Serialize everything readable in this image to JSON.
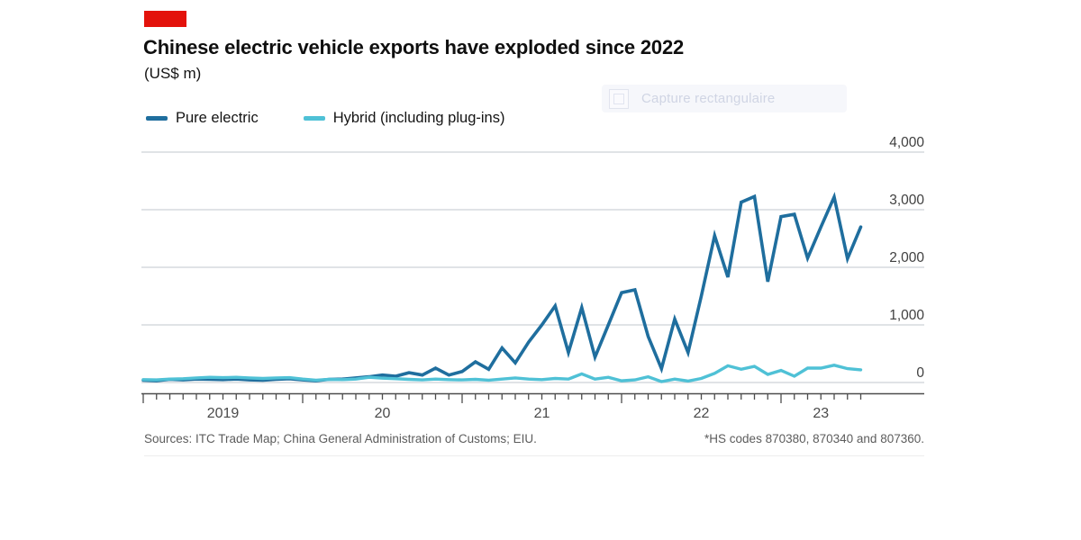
{
  "header": {
    "tag_color": "#e3120b",
    "title": "Chinese electric vehicle exports have exploded since 2022",
    "subtitle": "(US$ m)"
  },
  "screenshot_overlay": {
    "label": "Capture rectangulaire",
    "icon": "region-capture-icon"
  },
  "legend": [
    {
      "label": "Pure electric",
      "color": "#1f6e9e"
    },
    {
      "label": "Hybrid (including plug-ins)",
      "color": "#4fc1d6"
    }
  ],
  "chart_data": {
    "type": "line",
    "title": "Chinese electric vehicle exports have exploded since 2022",
    "subtitle": "(US$ m)",
    "x_unit": "month",
    "x_start": "2019-01",
    "x_end": "2023-07",
    "x_tick_labels": [
      "2019",
      "20",
      "21",
      "22",
      "23"
    ],
    "ylim": [
      0,
      4000
    ],
    "y_ticks": [
      0,
      1000,
      2000,
      3000,
      4000
    ],
    "y_tick_labels": [
      "0",
      "1,000",
      "2,000",
      "3,000",
      "4,000"
    ],
    "grid": "horizontal-right-labels",
    "legend_position": "top-left",
    "colors": {
      "grid": "#cdd2d6",
      "axis": "#4d4d4d",
      "tick_label": "#4a4a4a"
    },
    "series": [
      {
        "name": "Pure electric",
        "color": "#1f6e9e",
        "values": [
          40,
          30,
          55,
          45,
          60,
          55,
          50,
          60,
          45,
          40,
          55,
          65,
          45,
          30,
          55,
          60,
          80,
          100,
          130,
          110,
          170,
          130,
          250,
          130,
          190,
          360,
          230,
          600,
          340,
          700,
          1000,
          1330,
          520,
          1300,
          440,
          1000,
          1560,
          1610,
          800,
          240,
          1100,
          520,
          1500,
          2550,
          1830,
          3130,
          3230,
          1750,
          2880,
          2920,
          2160,
          2700,
          3220,
          2150,
          2700
        ]
      },
      {
        "name": "Hybrid (including plug-ins)",
        "color": "#4fc1d6",
        "values": [
          50,
          45,
          60,
          65,
          80,
          90,
          85,
          90,
          80,
          70,
          80,
          85,
          60,
          40,
          55,
          50,
          60,
          90,
          75,
          65,
          55,
          45,
          60,
          50,
          45,
          55,
          40,
          60,
          80,
          60,
          50,
          70,
          60,
          150,
          60,
          90,
          30,
          45,
          100,
          15,
          60,
          25,
          70,
          160,
          290,
          230,
          280,
          140,
          210,
          110,
          250,
          250,
          300,
          240,
          220
        ]
      }
    ]
  },
  "footer": {
    "sources": "Sources: ITC Trade Map; China General Administration of Customs; EIU.",
    "note": "*HS codes 870380, 870340 and 807360."
  }
}
